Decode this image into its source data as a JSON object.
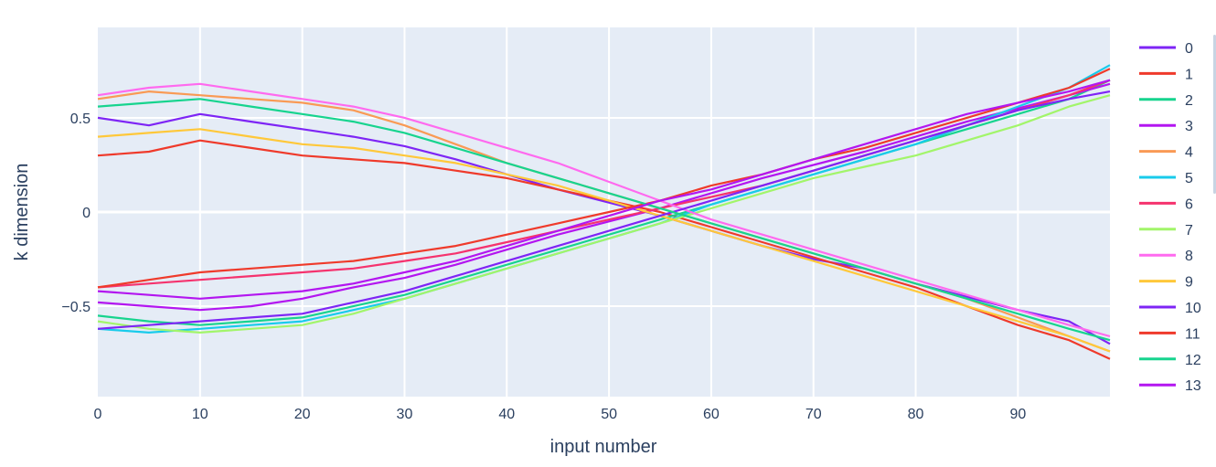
{
  "chart_data": {
    "type": "line",
    "xlabel": "input number",
    "ylabel": "k dimension",
    "xlim": [
      0,
      99
    ],
    "ylim": [
      -0.98,
      0.98
    ],
    "x_ticks": [
      0,
      10,
      20,
      30,
      40,
      50,
      60,
      70,
      80,
      90
    ],
    "y_ticks": [
      {
        "value": 0.5,
        "label": "0.5"
      },
      {
        "value": 0,
        "label": "0"
      },
      {
        "value": -0.5,
        "label": "−0.5"
      }
    ],
    "grid": true,
    "legend_position": "right",
    "x": [
      0,
      5,
      10,
      15,
      20,
      25,
      30,
      35,
      40,
      45,
      50,
      55,
      60,
      65,
      70,
      75,
      80,
      85,
      90,
      95,
      99
    ],
    "series": [
      {
        "name": "0",
        "color": "#7E25F5",
        "values": [
          0.5,
          0.46,
          0.52,
          0.48,
          0.44,
          0.4,
          0.35,
          0.28,
          0.2,
          0.12,
          0.05,
          -0.02,
          -0.1,
          -0.18,
          -0.25,
          -0.3,
          -0.38,
          -0.45,
          -0.52,
          -0.58,
          -0.7
        ]
      },
      {
        "name": "1",
        "color": "#EF3A2B",
        "values": [
          0.3,
          0.32,
          0.38,
          0.34,
          0.3,
          0.28,
          0.26,
          0.22,
          0.18,
          0.12,
          0.06,
          0.0,
          -0.08,
          -0.16,
          -0.24,
          -0.32,
          -0.4,
          -0.5,
          -0.6,
          -0.68,
          -0.78
        ]
      },
      {
        "name": "2",
        "color": "#17D48E",
        "values": [
          -0.55,
          -0.58,
          -0.6,
          -0.58,
          -0.56,
          -0.5,
          -0.44,
          -0.36,
          -0.28,
          -0.2,
          -0.12,
          -0.04,
          0.04,
          0.12,
          0.2,
          0.28,
          0.36,
          0.44,
          0.52,
          0.6,
          0.7
        ]
      },
      {
        "name": "3",
        "color": "#B316F0",
        "values": [
          -0.48,
          -0.5,
          -0.52,
          -0.5,
          -0.46,
          -0.4,
          -0.35,
          -0.28,
          -0.2,
          -0.12,
          -0.05,
          0.02,
          0.1,
          0.18,
          0.25,
          0.32,
          0.4,
          0.48,
          0.55,
          0.62,
          0.68
        ]
      },
      {
        "name": "4",
        "color": "#F99A55",
        "values": [
          0.6,
          0.64,
          0.62,
          0.6,
          0.58,
          0.54,
          0.46,
          0.36,
          0.26,
          0.18,
          0.1,
          0.02,
          -0.06,
          -0.14,
          -0.22,
          -0.3,
          -0.38,
          -0.46,
          -0.56,
          -0.66,
          -0.74
        ]
      },
      {
        "name": "5",
        "color": "#19CBEB",
        "values": [
          -0.62,
          -0.64,
          -0.62,
          -0.6,
          -0.58,
          -0.52,
          -0.46,
          -0.38,
          -0.3,
          -0.22,
          -0.14,
          -0.06,
          0.04,
          0.12,
          0.2,
          0.28,
          0.36,
          0.46,
          0.56,
          0.66,
          0.78
        ]
      },
      {
        "name": "6",
        "color": "#F5336E",
        "values": [
          -0.4,
          -0.38,
          -0.36,
          -0.34,
          -0.32,
          -0.3,
          -0.26,
          -0.22,
          -0.16,
          -0.1,
          -0.04,
          0.02,
          0.08,
          0.14,
          0.22,
          0.3,
          0.38,
          0.46,
          0.54,
          0.62,
          0.7
        ]
      },
      {
        "name": "7",
        "color": "#A2F56A",
        "values": [
          -0.58,
          -0.62,
          -0.64,
          -0.62,
          -0.6,
          -0.54,
          -0.46,
          -0.38,
          -0.3,
          -0.22,
          -0.14,
          -0.06,
          0.02,
          0.1,
          0.18,
          0.24,
          0.3,
          0.38,
          0.46,
          0.56,
          0.62
        ]
      },
      {
        "name": "8",
        "color": "#FF6AEF",
        "values": [
          0.62,
          0.66,
          0.68,
          0.64,
          0.6,
          0.56,
          0.5,
          0.42,
          0.34,
          0.26,
          0.16,
          0.06,
          -0.04,
          -0.12,
          -0.2,
          -0.28,
          -0.36,
          -0.44,
          -0.52,
          -0.6,
          -0.66
        ]
      },
      {
        "name": "9",
        "color": "#FFC83A",
        "values": [
          0.4,
          0.42,
          0.44,
          0.4,
          0.36,
          0.34,
          0.3,
          0.26,
          0.2,
          0.14,
          0.06,
          -0.02,
          -0.1,
          -0.18,
          -0.26,
          -0.34,
          -0.42,
          -0.5,
          -0.58,
          -0.66,
          -0.74
        ]
      },
      {
        "name": "10",
        "color": "#7E25F5",
        "values": [
          -0.62,
          -0.6,
          -0.58,
          -0.56,
          -0.54,
          -0.48,
          -0.42,
          -0.34,
          -0.26,
          -0.18,
          -0.1,
          -0.02,
          0.06,
          0.14,
          0.22,
          0.3,
          0.38,
          0.46,
          0.54,
          0.6,
          0.64
        ]
      },
      {
        "name": "11",
        "color": "#EF3A2B",
        "values": [
          -0.4,
          -0.36,
          -0.32,
          -0.3,
          -0.28,
          -0.26,
          -0.22,
          -0.18,
          -0.12,
          -0.06,
          0.0,
          0.06,
          0.14,
          0.2,
          0.28,
          0.34,
          0.42,
          0.5,
          0.58,
          0.66,
          0.76
        ]
      },
      {
        "name": "12",
        "color": "#17D48E",
        "values": [
          0.56,
          0.58,
          0.6,
          0.56,
          0.52,
          0.48,
          0.42,
          0.34,
          0.26,
          0.18,
          0.1,
          0.02,
          -0.06,
          -0.14,
          -0.22,
          -0.3,
          -0.38,
          -0.46,
          -0.54,
          -0.62,
          -0.68
        ]
      },
      {
        "name": "13",
        "color": "#B316F0",
        "values": [
          -0.42,
          -0.44,
          -0.46,
          -0.44,
          -0.42,
          -0.38,
          -0.32,
          -0.26,
          -0.18,
          -0.1,
          -0.02,
          0.06,
          0.12,
          0.2,
          0.28,
          0.36,
          0.44,
          0.52,
          0.58,
          0.64,
          0.7
        ]
      }
    ]
  }
}
